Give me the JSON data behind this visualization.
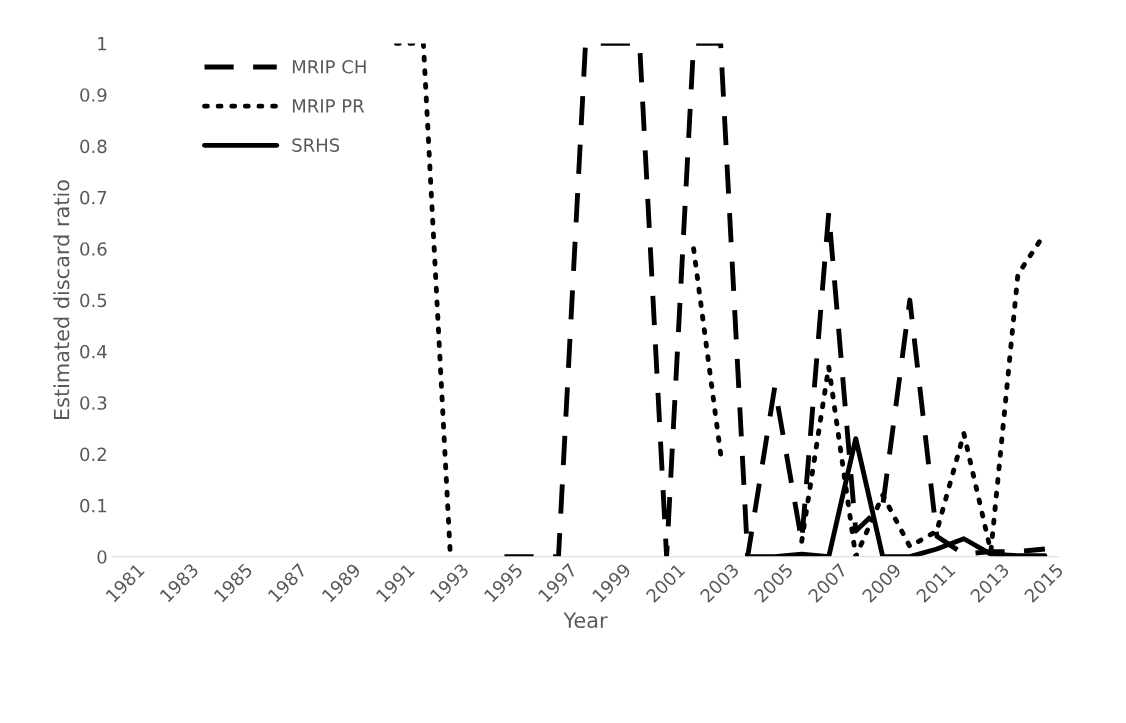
{
  "chart_data": {
    "type": "line",
    "xlabel": "Year",
    "ylabel": "Estimated discard ratio",
    "categories": [
      "1981",
      null,
      "1983",
      null,
      "1985",
      null,
      "1987",
      null,
      "1989",
      null,
      "1991",
      null,
      "1993",
      null,
      "1995",
      null,
      "1997",
      null,
      "1999",
      null,
      "2001",
      null,
      "2003",
      null,
      "2005",
      null,
      "2007",
      null,
      "2009",
      null,
      "2011",
      null,
      "2013",
      null,
      "2015"
    ],
    "ylim": [
      0,
      1
    ],
    "yticks": [
      0,
      0.1,
      0.2,
      0.3,
      0.4,
      0.5,
      0.6,
      0.7,
      0.8,
      0.9,
      1
    ],
    "grid": false,
    "legend": "top left",
    "marker": "none",
    "series": [
      {
        "name": "MRIP CH",
        "color": "#000000",
        "line_style": "dashed",
        "values": [
          null,
          null,
          null,
          null,
          null,
          null,
          null,
          null,
          null,
          null,
          null,
          null,
          null,
          null,
          0,
          0,
          0,
          1,
          1,
          1,
          0,
          1,
          1,
          0,
          0.33,
          0.03,
          0.67,
          0.05,
          0.1,
          0.5,
          0.04,
          0.005,
          0.01,
          0.01,
          0.015
        ]
      },
      {
        "name": "MRIP PR",
        "color": "#000000",
        "line_style": "dotted",
        "values": [
          null,
          null,
          null,
          null,
          null,
          null,
          null,
          null,
          null,
          null,
          1,
          1,
          0,
          null,
          null,
          null,
          null,
          null,
          null,
          null,
          null,
          0.6,
          0.2,
          null,
          null,
          0.03,
          0.37,
          0,
          0.12,
          0.02,
          0.05,
          0.24,
          0.01,
          0.55,
          0.63
        ]
      },
      {
        "name": "SRHS",
        "color": "#000000",
        "line_style": "solid",
        "values": [
          null,
          null,
          null,
          null,
          null,
          null,
          null,
          null,
          null,
          null,
          null,
          null,
          null,
          null,
          null,
          null,
          null,
          null,
          null,
          null,
          null,
          null,
          null,
          0,
          0,
          0.005,
          0,
          0.23,
          0,
          0,
          0.015,
          0.035,
          0.005,
          0.002,
          0.002
        ]
      }
    ]
  }
}
